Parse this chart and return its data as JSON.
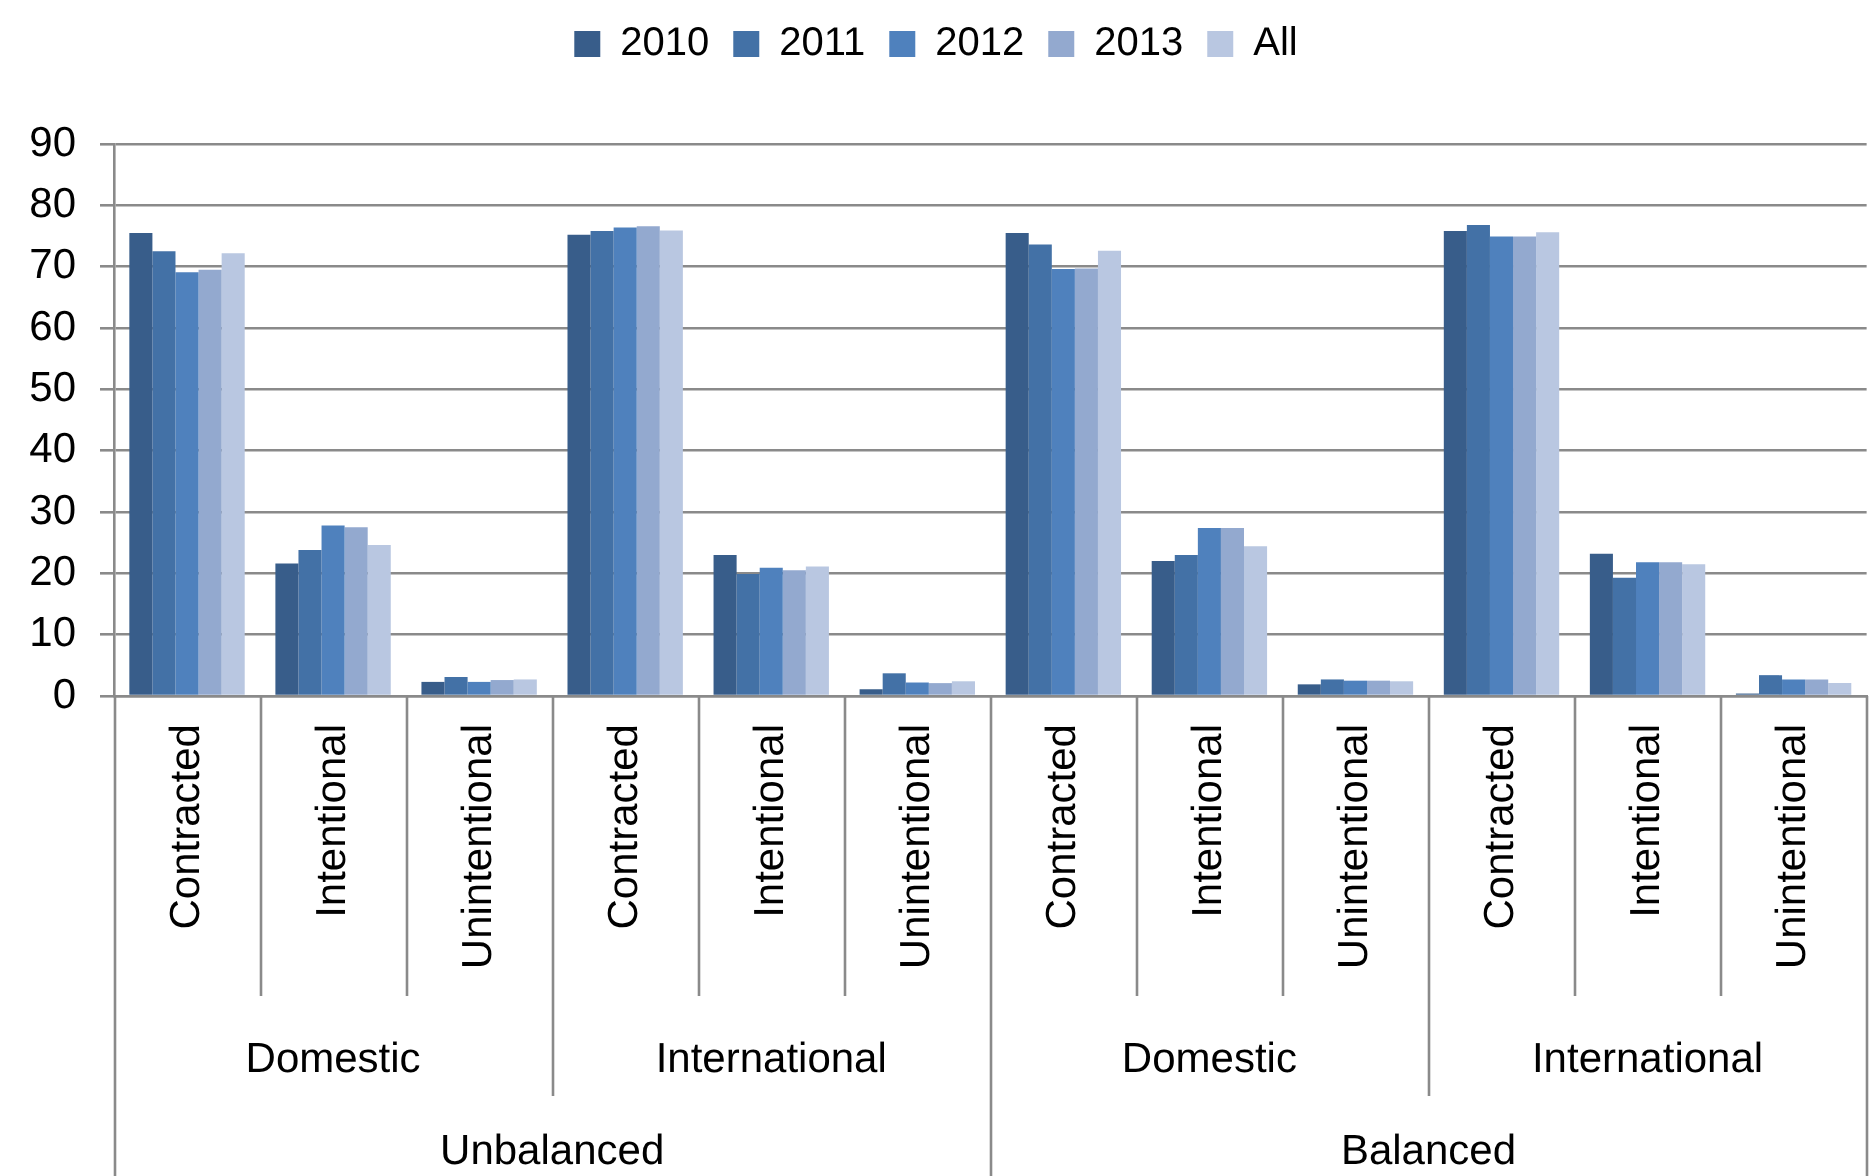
{
  "chart_data": {
    "type": "bar",
    "categories": [
      "Contracted",
      "Intentional",
      "Unintentional",
      "Contracted",
      "Intentional",
      "Unintentional",
      "Contracted",
      "Intentional",
      "Unintentional",
      "Contracted",
      "Intentional",
      "Unintentional"
    ],
    "series": [
      {
        "name": "2010",
        "color": "#385d8a",
        "values": [
          75.5,
          21.6,
          2.3,
          75.2,
          23.0,
          1.1,
          75.5,
          22.0,
          1.9,
          75.8,
          23.2,
          0.4
        ]
      },
      {
        "name": "2011",
        "color": "#4371a6",
        "values": [
          72.5,
          23.8,
          3.1,
          75.8,
          19.9,
          3.7,
          73.6,
          23.0,
          2.7,
          76.8,
          19.3,
          3.4
        ]
      },
      {
        "name": "2012",
        "color": "#4f81bd",
        "values": [
          69.1,
          27.8,
          2.3,
          76.4,
          20.9,
          2.2,
          69.6,
          27.4,
          2.5,
          74.9,
          21.8,
          2.7
        ]
      },
      {
        "name": "2013",
        "color": "#93a9cf",
        "values": [
          69.5,
          27.5,
          2.6,
          76.6,
          20.5,
          2.1,
          69.7,
          27.4,
          2.5,
          74.9,
          21.8,
          2.7
        ]
      },
      {
        "name": "All",
        "color": "#b9c7e1",
        "values": [
          72.2,
          24.6,
          2.7,
          75.9,
          21.1,
          2.4,
          72.6,
          24.4,
          2.4,
          75.6,
          21.5,
          2.1
        ]
      }
    ],
    "annotations": [
      "Domestic",
      "International",
      "Domestic",
      "International",
      "Unbalanced",
      "Balanced"
    ],
    "ylim": [
      0,
      90
    ],
    "yticks": [
      0,
      10,
      20,
      30,
      40,
      50,
      60,
      70,
      80,
      90
    ],
    "grid": "y",
    "legend": "top"
  }
}
